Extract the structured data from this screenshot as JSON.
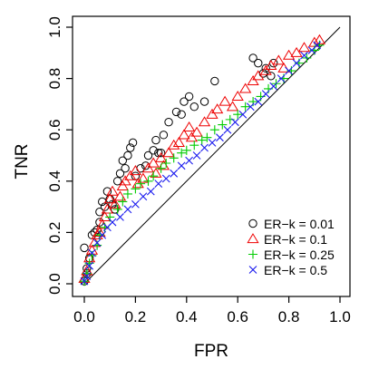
{
  "chart_data": {
    "type": "scatter",
    "title": "",
    "xlabel": "FPR",
    "ylabel": "TNR",
    "xlim": [
      0,
      1
    ],
    "ylim": [
      0,
      1
    ],
    "x_ticks": [
      "0.0",
      "0.2",
      "0.4",
      "0.6",
      "0.8",
      "1.0"
    ],
    "y_ticks": [
      "0.0",
      "0.2",
      "0.4",
      "0.6",
      "0.8",
      "1.0"
    ],
    "grid": false,
    "reference_line": {
      "from": [
        0,
        0
      ],
      "to": [
        1,
        1
      ]
    },
    "legend_position": "bottom-right",
    "series": [
      {
        "name": "ER−k = 0.01",
        "marker": "circle",
        "color": "#000000",
        "points": [
          [
            0.0,
            0.01
          ],
          [
            0.01,
            0.04
          ],
          [
            0.01,
            0.06
          ],
          [
            0.0,
            0.14
          ],
          [
            0.02,
            0.1
          ],
          [
            0.03,
            0.19
          ],
          [
            0.04,
            0.2
          ],
          [
            0.05,
            0.21
          ],
          [
            0.06,
            0.24
          ],
          [
            0.06,
            0.28
          ],
          [
            0.07,
            0.32
          ],
          [
            0.08,
            0.3
          ],
          [
            0.09,
            0.36
          ],
          [
            0.1,
            0.33
          ],
          [
            0.11,
            0.31
          ],
          [
            0.12,
            0.29
          ],
          [
            0.13,
            0.4
          ],
          [
            0.14,
            0.43
          ],
          [
            0.15,
            0.48
          ],
          [
            0.16,
            0.45
          ],
          [
            0.17,
            0.5
          ],
          [
            0.18,
            0.53
          ],
          [
            0.19,
            0.55
          ],
          [
            0.2,
            0.42
          ],
          [
            0.22,
            0.45
          ],
          [
            0.24,
            0.46
          ],
          [
            0.25,
            0.5
          ],
          [
            0.27,
            0.52
          ],
          [
            0.28,
            0.56
          ],
          [
            0.29,
            0.51
          ],
          [
            0.3,
            0.51
          ],
          [
            0.31,
            0.58
          ],
          [
            0.33,
            0.63
          ],
          [
            0.36,
            0.67
          ],
          [
            0.38,
            0.66
          ],
          [
            0.39,
            0.71
          ],
          [
            0.41,
            0.73
          ],
          [
            0.43,
            0.69
          ],
          [
            0.47,
            0.71
          ],
          [
            0.51,
            0.79
          ],
          [
            0.66,
            0.88
          ],
          [
            0.68,
            0.86
          ],
          [
            0.7,
            0.82
          ],
          [
            0.71,
            0.84
          ],
          [
            0.73,
            0.81
          ],
          [
            0.74,
            0.86
          ]
        ]
      },
      {
        "name": "ER−k = 0.1",
        "marker": "triangle",
        "color": "#ee0000",
        "points": [
          [
            0.0,
            0.02
          ],
          [
            0.01,
            0.05
          ],
          [
            0.02,
            0.1
          ],
          [
            0.03,
            0.13
          ],
          [
            0.04,
            0.16
          ],
          [
            0.05,
            0.19
          ],
          [
            0.06,
            0.2
          ],
          [
            0.07,
            0.23
          ],
          [
            0.08,
            0.26
          ],
          [
            0.09,
            0.29
          ],
          [
            0.1,
            0.33
          ],
          [
            0.11,
            0.36
          ],
          [
            0.12,
            0.31
          ],
          [
            0.14,
            0.34
          ],
          [
            0.15,
            0.38
          ],
          [
            0.16,
            0.4
          ],
          [
            0.18,
            0.42
          ],
          [
            0.2,
            0.44
          ],
          [
            0.21,
            0.39
          ],
          [
            0.23,
            0.41
          ],
          [
            0.25,
            0.45
          ],
          [
            0.27,
            0.47
          ],
          [
            0.28,
            0.43
          ],
          [
            0.3,
            0.49
          ],
          [
            0.31,
            0.46
          ],
          [
            0.33,
            0.51
          ],
          [
            0.35,
            0.54
          ],
          [
            0.37,
            0.55
          ],
          [
            0.39,
            0.58
          ],
          [
            0.41,
            0.61
          ],
          [
            0.42,
            0.57
          ],
          [
            0.44,
            0.59
          ],
          [
            0.47,
            0.63
          ],
          [
            0.5,
            0.66
          ],
          [
            0.52,
            0.68
          ],
          [
            0.55,
            0.71
          ],
          [
            0.58,
            0.69
          ],
          [
            0.6,
            0.73
          ],
          [
            0.63,
            0.76
          ],
          [
            0.66,
            0.79
          ],
          [
            0.68,
            0.81
          ],
          [
            0.71,
            0.83
          ],
          [
            0.73,
            0.85
          ],
          [
            0.76,
            0.87
          ],
          [
            0.78,
            0.84
          ],
          [
            0.8,
            0.89
          ],
          [
            0.83,
            0.9
          ],
          [
            0.86,
            0.92
          ],
          [
            0.9,
            0.94
          ],
          [
            0.92,
            0.95
          ]
        ]
      },
      {
        "name": "ER−k = 0.25",
        "marker": "plus",
        "color": "#00cc00",
        "points": [
          [
            0.0,
            0.01
          ],
          [
            0.01,
            0.04
          ],
          [
            0.02,
            0.08
          ],
          [
            0.03,
            0.11
          ],
          [
            0.05,
            0.15
          ],
          [
            0.06,
            0.19
          ],
          [
            0.08,
            0.22
          ],
          [
            0.1,
            0.26
          ],
          [
            0.13,
            0.29
          ],
          [
            0.15,
            0.32
          ],
          [
            0.17,
            0.35
          ],
          [
            0.2,
            0.37
          ],
          [
            0.22,
            0.39
          ],
          [
            0.25,
            0.4
          ],
          [
            0.27,
            0.42
          ],
          [
            0.3,
            0.45
          ],
          [
            0.32,
            0.47
          ],
          [
            0.35,
            0.49
          ],
          [
            0.38,
            0.51
          ],
          [
            0.4,
            0.52
          ],
          [
            0.43,
            0.54
          ],
          [
            0.46,
            0.56
          ],
          [
            0.48,
            0.57
          ],
          [
            0.51,
            0.6
          ],
          [
            0.54,
            0.62
          ],
          [
            0.57,
            0.64
          ],
          [
            0.6,
            0.66
          ],
          [
            0.63,
            0.69
          ],
          [
            0.66,
            0.71
          ],
          [
            0.69,
            0.73
          ],
          [
            0.72,
            0.76
          ],
          [
            0.75,
            0.78
          ],
          [
            0.78,
            0.8
          ],
          [
            0.81,
            0.83
          ],
          [
            0.84,
            0.86
          ],
          [
            0.87,
            0.88
          ],
          [
            0.9,
            0.91
          ],
          [
            0.92,
            0.93
          ]
        ]
      },
      {
        "name": "ER−k = 0.5",
        "marker": "cross",
        "color": "#1a1aee",
        "points": [
          [
            0.0,
            0.01
          ],
          [
            0.01,
            0.03
          ],
          [
            0.02,
            0.07
          ],
          [
            0.03,
            0.12
          ],
          [
            0.05,
            0.16
          ],
          [
            0.07,
            0.19
          ],
          [
            0.09,
            0.22
          ],
          [
            0.11,
            0.24
          ],
          [
            0.14,
            0.26
          ],
          [
            0.17,
            0.29
          ],
          [
            0.2,
            0.31
          ],
          [
            0.23,
            0.34
          ],
          [
            0.26,
            0.36
          ],
          [
            0.29,
            0.39
          ],
          [
            0.32,
            0.41
          ],
          [
            0.35,
            0.43
          ],
          [
            0.38,
            0.46
          ],
          [
            0.41,
            0.48
          ],
          [
            0.44,
            0.5
          ],
          [
            0.47,
            0.53
          ],
          [
            0.5,
            0.55
          ],
          [
            0.53,
            0.57
          ],
          [
            0.56,
            0.6
          ],
          [
            0.59,
            0.63
          ],
          [
            0.62,
            0.66
          ],
          [
            0.65,
            0.69
          ],
          [
            0.68,
            0.71
          ],
          [
            0.71,
            0.74
          ],
          [
            0.74,
            0.77
          ],
          [
            0.77,
            0.8
          ],
          [
            0.8,
            0.83
          ],
          [
            0.83,
            0.86
          ],
          [
            0.86,
            0.89
          ],
          [
            0.89,
            0.91
          ],
          [
            0.91,
            0.93
          ]
        ]
      }
    ]
  }
}
